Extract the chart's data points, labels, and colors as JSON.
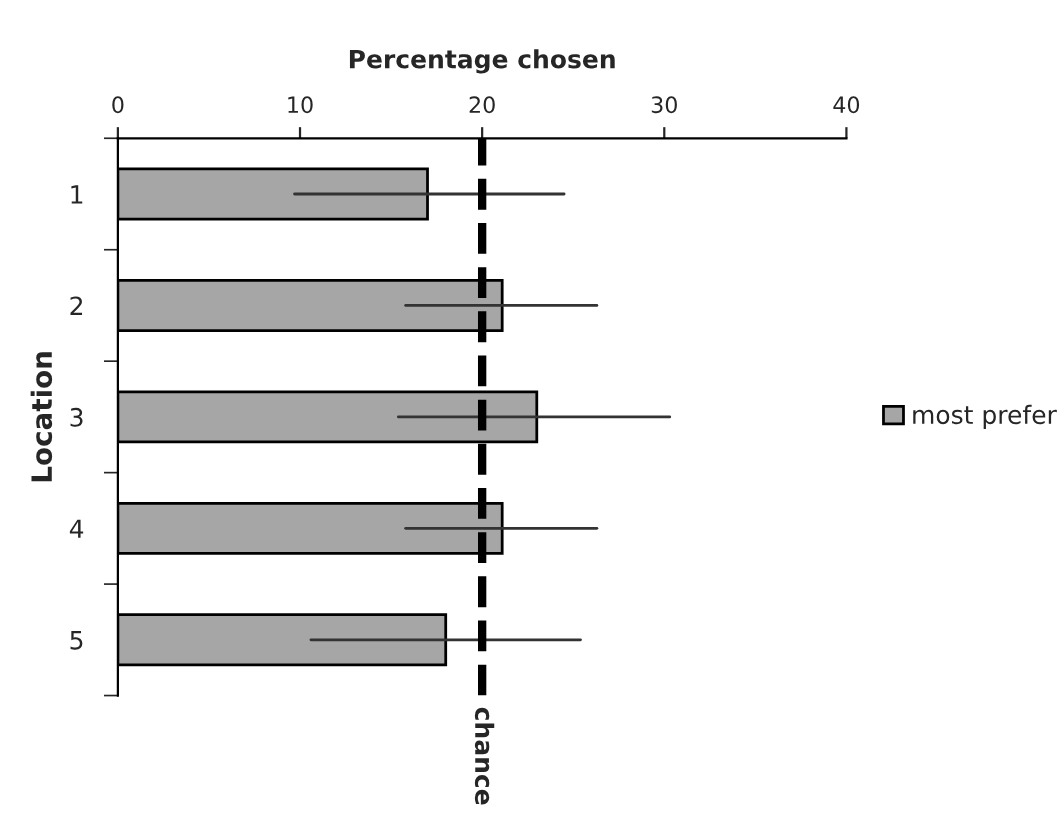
{
  "chart_data": {
    "type": "bar",
    "orientation": "horizontal",
    "xlabel": "Percentage chosen",
    "ylabel": "Location",
    "categories": [
      "1",
      "2",
      "3",
      "4",
      "5"
    ],
    "series": [
      {
        "name": "most prefer",
        "color": "#a6a6a6",
        "values": [
          17,
          21.1,
          23,
          21.1,
          18
        ],
        "errors": [
          [
            9.7,
            24.5
          ],
          [
            15.8,
            26.3
          ],
          [
            15.4,
            30.3
          ],
          [
            15.8,
            26.3
          ],
          [
            10.6,
            25.4
          ]
        ]
      }
    ],
    "xlim": [
      0,
      40
    ],
    "xticks": [
      0,
      10,
      20,
      30,
      40
    ],
    "ref_lines": [
      {
        "axis": "x",
        "value": 20,
        "label": "chance",
        "color": "#000000",
        "line_style": "dashed"
      }
    ],
    "legend": "right",
    "grid": false
  }
}
